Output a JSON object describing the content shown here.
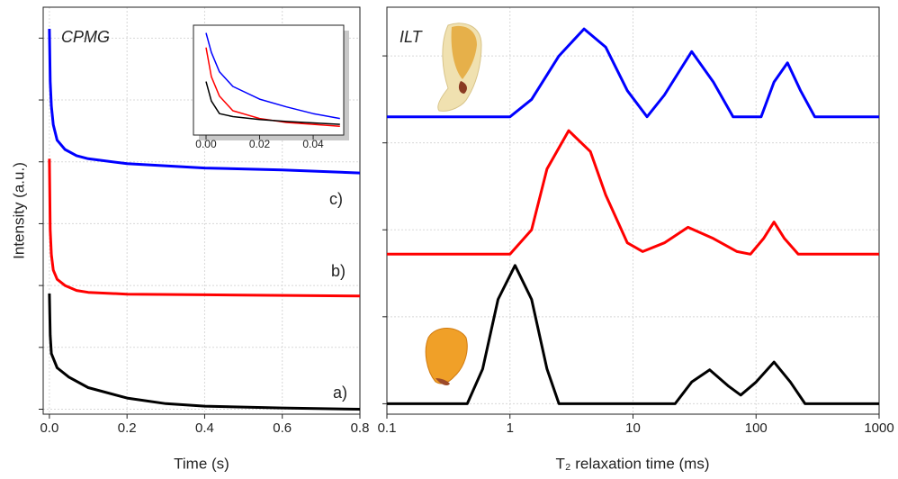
{
  "chart_data": [
    {
      "type": "line",
      "title": "CPMG",
      "xlabel": "Time (s)",
      "ylabel": "Intensity (a.u.)",
      "annotations": [
        "c)",
        "b)",
        "a)"
      ],
      "xlim": [
        -0.016,
        0.8
      ],
      "ylim": [
        -0.08,
        6.5
      ],
      "xticks": [
        {
          "value": 0,
          "label": "0.0"
        },
        0.2,
        0.4,
        0.6,
        0.8
      ],
      "yticks": [
        0,
        1,
        2,
        3,
        4,
        5,
        6
      ],
      "ytick_labels": false,
      "grid": true,
      "series": [
        {
          "name": "c)",
          "color": "#0000ff",
          "x": [
            0,
            0.002,
            0.005,
            0.01,
            0.02,
            0.04,
            0.07,
            0.1,
            0.2,
            0.4,
            0.6,
            0.8
          ],
          "values": [
            6.15,
            5.3,
            4.9,
            4.6,
            4.35,
            4.2,
            4.1,
            4.05,
            3.97,
            3.9,
            3.87,
            3.82
          ]
        },
        {
          "name": "b)",
          "color": "#ff0000",
          "x": [
            0,
            0.002,
            0.005,
            0.01,
            0.02,
            0.04,
            0.07,
            0.1,
            0.2,
            0.4,
            0.8
          ],
          "values": [
            4.05,
            2.9,
            2.5,
            2.25,
            2.1,
            2.0,
            1.92,
            1.89,
            1.86,
            1.85,
            1.83
          ]
        },
        {
          "name": "a)",
          "color": "#000000",
          "x": [
            0,
            0.002,
            0.005,
            0.02,
            0.05,
            0.1,
            0.2,
            0.3,
            0.4,
            0.6,
            0.8
          ],
          "values": [
            1.87,
            1.2,
            0.9,
            0.67,
            0.52,
            0.35,
            0.18,
            0.09,
            0.05,
            0.02,
            0
          ]
        }
      ]
    },
    {
      "type": "line",
      "xlim": [
        -0.0047,
        0.0514
      ],
      "ylim": [
        -0.05,
        1.08
      ],
      "xticks": [
        {
          "value": 0,
          "label": "0.00"
        },
        {
          "value": 0.02,
          "label": "0.02"
        },
        {
          "value": 0.04,
          "label": "0.04"
        }
      ],
      "series": [
        {
          "color": "#0000ff",
          "x": [
            0,
            0.002,
            0.005,
            0.01,
            0.02,
            0.03,
            0.04,
            0.05
          ],
          "values": [
            1,
            0.8,
            0.6,
            0.45,
            0.32,
            0.24,
            0.17,
            0.12
          ]
        },
        {
          "color": "#ff0000",
          "x": [
            0,
            0.002,
            0.005,
            0.01,
            0.02,
            0.03,
            0.05
          ],
          "values": [
            0.85,
            0.55,
            0.35,
            0.2,
            0.12,
            0.08,
            0.04
          ]
        },
        {
          "color": "#000000",
          "x": [
            0,
            0.002,
            0.005,
            0.01,
            0.02,
            0.03,
            0.05
          ],
          "values": [
            0.5,
            0.3,
            0.17,
            0.14,
            0.11,
            0.09,
            0.06
          ]
        }
      ]
    },
    {
      "type": "line",
      "title": "ILT",
      "xlabel": "T₂ relaxation time (ms)",
      "xscale": "log",
      "xlim": [
        0.1,
        1000
      ],
      "ylim": [
        -0.12,
        4.56
      ],
      "xticks": [
        0.1,
        1,
        10,
        100,
        1000
      ],
      "yticks": [
        0,
        1,
        2,
        3,
        4
      ],
      "ytick_labels": false,
      "grid": true,
      "series": [
        {
          "color": "#0000ff",
          "x": [
            0.1,
            1,
            1.5,
            2.5,
            4,
            6,
            9,
            13,
            18,
            30,
            45,
            65,
            110,
            140,
            180,
            230,
            300,
            1000
          ],
          "values": [
            3.3,
            3.3,
            3.5,
            4.0,
            4.31,
            4.1,
            3.6,
            3.3,
            3.55,
            4.05,
            3.7,
            3.3,
            3.3,
            3.7,
            3.92,
            3.6,
            3.3,
            3.3
          ]
        },
        {
          "color": "#ff0000",
          "x": [
            0.1,
            1,
            1.5,
            2,
            3,
            4.5,
            6,
            9,
            12,
            18,
            28,
            45,
            70,
            90,
            115,
            140,
            170,
            220,
            1000
          ],
          "values": [
            1.72,
            1.72,
            2.0,
            2.7,
            3.14,
            2.9,
            2.4,
            1.85,
            1.75,
            1.85,
            2.03,
            1.9,
            1.75,
            1.72,
            1.9,
            2.09,
            1.9,
            1.72,
            1.72
          ]
        },
        {
          "color": "#000000",
          "x": [
            0.1,
            0.45,
            0.6,
            0.8,
            1.1,
            1.5,
            2,
            2.5,
            5,
            22,
            30,
            42,
            60,
            75,
            100,
            140,
            190,
            250,
            1000
          ],
          "values": [
            0,
            0,
            0.4,
            1.2,
            1.59,
            1.2,
            0.4,
            0,
            0,
            0,
            0.25,
            0.39,
            0.2,
            0.1,
            0.25,
            0.48,
            0.25,
            0,
            0
          ]
        }
      ]
    }
  ]
}
